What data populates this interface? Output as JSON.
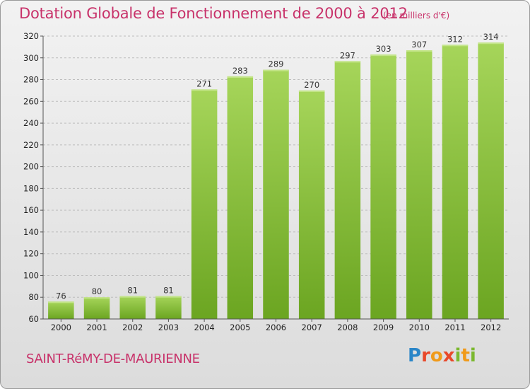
{
  "header": {
    "title": "Dotation Globale de Fonctionnement de 2000 à 2012",
    "unit": "(en milliers d'€)"
  },
  "footer": {
    "commune": "SAINT-RéMY-DE-MAURIENNE",
    "logo": [
      "P",
      "r",
      "o",
      "x",
      "i",
      "t",
      "i"
    ]
  },
  "colors": {
    "title": "#c8326a",
    "bar_light": "#a6d55a",
    "bar_dark": "#6ba521",
    "grid": "#bdbdbd"
  },
  "chart_data": {
    "type": "bar",
    "title": "Dotation Globale de Fonctionnement de 2000 à 2012",
    "subtitle": "(en milliers d'€)",
    "xlabel": "",
    "ylabel": "",
    "categories": [
      "2000",
      "2001",
      "2002",
      "2003",
      "2004",
      "2005",
      "2006",
      "2007",
      "2008",
      "2009",
      "2010",
      "2011",
      "2012"
    ],
    "values": [
      76,
      80,
      81,
      81,
      271,
      283,
      289,
      270,
      297,
      303,
      307,
      312,
      314
    ],
    "ylim": [
      60,
      320
    ],
    "yticks": [
      60,
      80,
      100,
      120,
      140,
      160,
      180,
      200,
      220,
      240,
      260,
      280,
      300,
      320
    ],
    "grid": true,
    "grid_style": "dashed horizontal",
    "data_labels": true
  }
}
